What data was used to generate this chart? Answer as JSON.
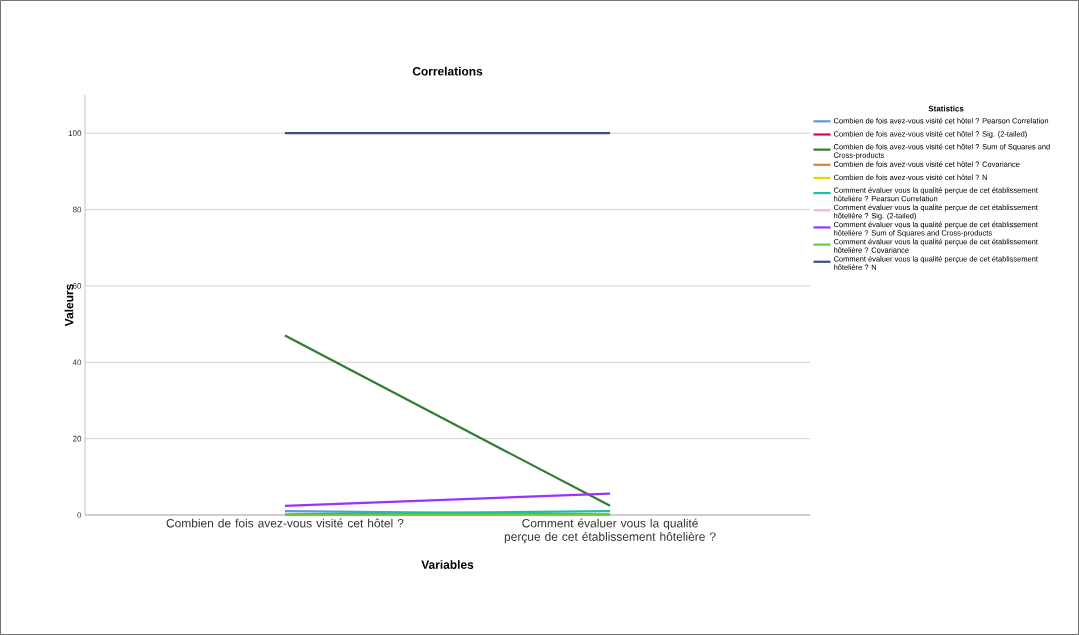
{
  "chart_data": {
    "type": "line",
    "title": "Correlations",
    "xlabel": "Variables",
    "ylabel": "Valeurs",
    "legend_title": "Statistics",
    "categories": [
      "Combien de fois avez-vous visité cet hôtel ?",
      "Comment évaluer vous la qualité perçue de cet établissement hôtelière ?"
    ],
    "series": [
      {
        "name": "Combien de fois avez-vous visité cet hôtel ? Pearson Correlation",
        "color": "#5b9bd5",
        "values": [
          1,
          0.2
        ]
      },
      {
        "name": "Combien de fois avez-vous visité cet hôtel ? Sig. (2-tailed)",
        "color": "#e8003d",
        "values": [
          null,
          null
        ]
      },
      {
        "name": "Combien de fois avez-vous visité cet hôtel ? Sum of Squares and Cross-products",
        "color": "#2e7d32",
        "values": [
          47,
          2.4
        ]
      },
      {
        "name": "Combien de fois avez-vous visité cet hôtel ? Covariance",
        "color": "#d9823b",
        "values": [
          null,
          null
        ]
      },
      {
        "name": "Combien de fois avez-vous visité cet hôtel ? N",
        "color": "#e6d800",
        "values": [
          null,
          null
        ]
      },
      {
        "name": "Comment évaluer vous la qualité perçue de cet établissement hôtelière ? Pearson Correlation",
        "color": "#1fbf9f",
        "values": [
          0.2,
          1
        ]
      },
      {
        "name": "Comment évaluer vous la qualité perçue de cet établissement hôtelière ? Sig. (2-tailed)",
        "color": "#f4b6c8",
        "values": [
          null,
          null
        ]
      },
      {
        "name": "Comment évaluer vous la qualité perçue de cet établissement hôtelière ? Sum of Squares and Cross-products",
        "color": "#9b30ff",
        "values": [
          2.4,
          5.6
        ]
      },
      {
        "name": "Comment évaluer vous la qualité perçue de cet établissement hôtelière ? Covariance",
        "color": "#66cc33",
        "values": [
          0,
          0.1
        ]
      },
      {
        "name": "Comment évaluer vous la qualité perçue de cet établissement hôtelière ? N",
        "color": "#3b4f7a",
        "values": [
          100,
          100
        ]
      }
    ],
    "ylim": [
      0,
      110
    ],
    "yticks": [
      0,
      20,
      40,
      60,
      80,
      100
    ],
    "grid": "y",
    "legend": "right",
    "marker": "none",
    "line_style": "solid"
  }
}
